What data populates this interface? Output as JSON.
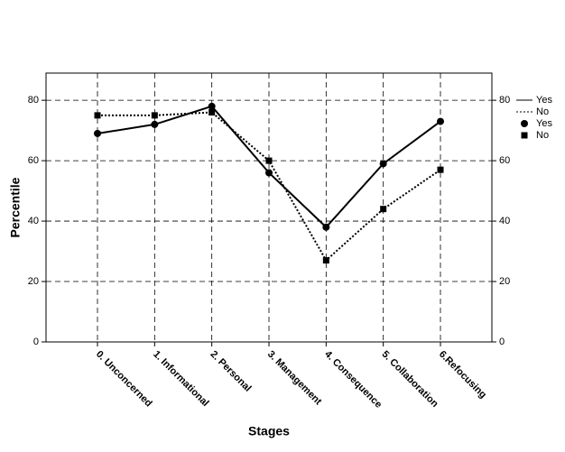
{
  "chart_data": {
    "type": "line",
    "x_label": "Stages",
    "y_label": "Percentile",
    "categories": [
      "0. Unconcerned",
      "1. Informational",
      "2. Personal",
      "3. Management",
      "4. Consequence",
      "5. Collaboration",
      "6.Refocusing"
    ],
    "series": [
      {
        "name": "Yes",
        "color": "#000000",
        "dash": "solid",
        "marker": "circle",
        "values": [
          69,
          72,
          78,
          56,
          38,
          59,
          73
        ]
      },
      {
        "name": "No",
        "color": "#000000",
        "dash": "dotted",
        "marker": "square",
        "values": [
          75,
          75,
          76,
          60,
          27,
          44,
          57
        ]
      }
    ],
    "ylim": [
      0,
      89
    ],
    "yticks": [
      0,
      20,
      40,
      60,
      80
    ],
    "grid": true,
    "legend": "right"
  }
}
